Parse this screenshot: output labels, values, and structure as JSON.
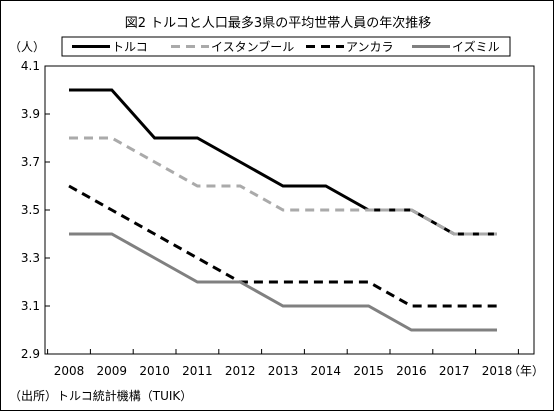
{
  "chart_data": {
    "type": "line",
    "title": "図2 トルコと人口最多3県の平均世帯人員の年次推移",
    "ylabel": "（人）",
    "xlabel": "（年）",
    "ylim": [
      2.9,
      4.1
    ],
    "yticks": [
      2.9,
      3.1,
      3.3,
      3.5,
      3.7,
      3.9,
      4.1
    ],
    "x": [
      2008,
      2009,
      2010,
      2011,
      2012,
      2013,
      2014,
      2015,
      2016,
      2017,
      2018
    ],
    "grid": false,
    "legend": "top",
    "series": [
      {
        "name": "トルコ",
        "values": [
          4.0,
          4.0,
          3.8,
          3.8,
          3.7,
          3.6,
          3.6,
          3.5,
          3.5,
          3.4,
          3.4
        ],
        "color": "#000000",
        "style": "solid"
      },
      {
        "name": "イスタンブール",
        "values": [
          3.8,
          3.8,
          3.7,
          3.6,
          3.6,
          3.5,
          3.5,
          3.5,
          3.5,
          3.4,
          3.4
        ],
        "color": "#aaaaaa",
        "style": "dashed"
      },
      {
        "name": "アンカラ",
        "values": [
          3.6,
          3.5,
          3.4,
          3.3,
          3.2,
          3.2,
          3.2,
          3.2,
          3.1,
          3.1,
          3.1
        ],
        "color": "#000000",
        "style": "dashed"
      },
      {
        "name": "イズミル",
        "values": [
          3.4,
          3.4,
          3.3,
          3.2,
          3.2,
          3.1,
          3.1,
          3.1,
          3.0,
          3.0,
          3.0
        ],
        "color": "#808080",
        "style": "solid"
      }
    ],
    "source": "（出所）トルコ統計機構（TUIK）"
  }
}
